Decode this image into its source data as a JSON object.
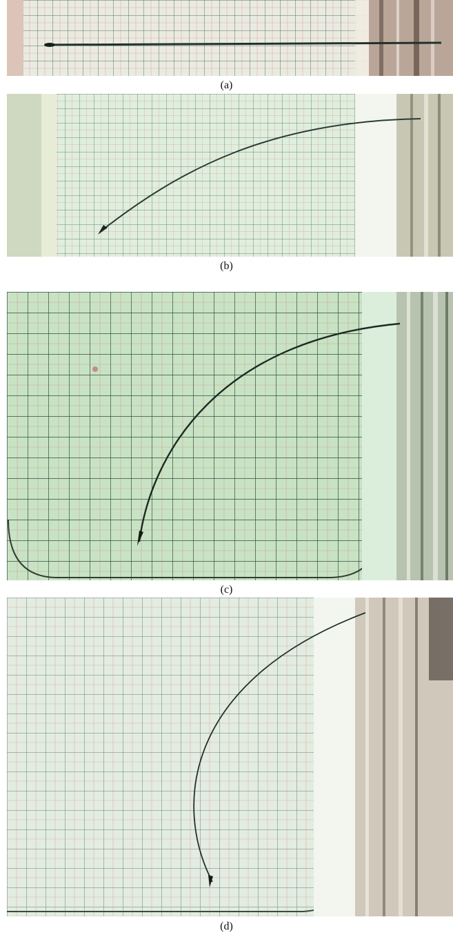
{
  "figure": {
    "panels": [
      {
        "caption": "(a)",
        "colors": {
          "paper": "#e9ebe1",
          "frame": "#d9c3b6",
          "ribbon": "#20322a"
        }
      },
      {
        "caption": "(b)",
        "colors": {
          "paper": "#dfeedd",
          "frame": "#c9d5b5",
          "ribbon": "#2a3a34"
        }
      },
      {
        "caption": "(c)",
        "colors": {
          "paper": "#c8e3c4",
          "frame": "#b6ccab",
          "ribbon": "#1d2a22"
        }
      },
      {
        "caption": "(d)",
        "colors": {
          "paper": "#e2ece0",
          "frame": "#d2dac9",
          "ribbon": "#26302b"
        }
      }
    ]
  }
}
